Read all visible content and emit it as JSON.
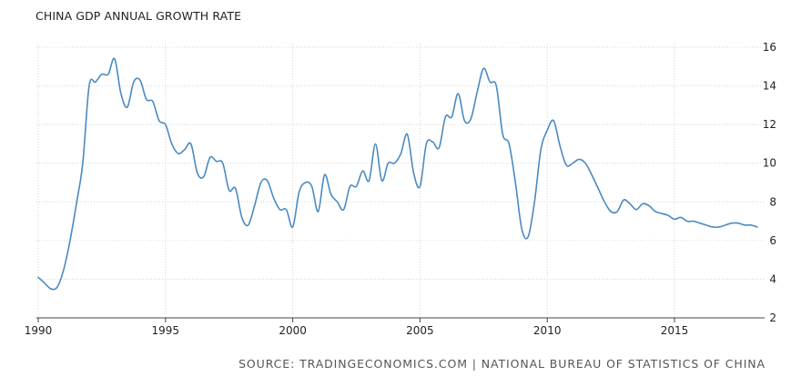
{
  "chart_data": {
    "type": "line",
    "title": "CHINA GDP ANNUAL GROWTH RATE",
    "source": "SOURCE: TRADINGECONOMICS.COM | NATIONAL BUREAU OF STATISTICS OF CHINA",
    "xlabel": "",
    "ylabel": "",
    "xlim": [
      1990,
      2018.5
    ],
    "ylim": [
      2,
      16
    ],
    "x_ticks": [
      {
        "value": 1990,
        "label": "1990"
      },
      {
        "value": 1995,
        "label": "1995"
      },
      {
        "value": 2000,
        "label": "2000"
      },
      {
        "value": 2005,
        "label": "2005"
      },
      {
        "value": 2010,
        "label": "2010"
      },
      {
        "value": 2015,
        "label": "2015"
      }
    ],
    "y_ticks": [
      {
        "value": 2,
        "label": "2"
      },
      {
        "value": 4,
        "label": "4"
      },
      {
        "value": 6,
        "label": "6"
      },
      {
        "value": 8,
        "label": "8"
      },
      {
        "value": 10,
        "label": "10"
      },
      {
        "value": 12,
        "label": "12"
      },
      {
        "value": 14,
        "label": "14"
      },
      {
        "value": 16,
        "label": "16"
      }
    ],
    "grid": true,
    "line_color": "#4a8ac2",
    "series": [
      {
        "name": "China GDP Annual Growth Rate",
        "x": [
          1990.0,
          1990.25,
          1990.5,
          1990.75,
          1991.0,
          1991.25,
          1991.5,
          1991.75,
          1992.0,
          1992.25,
          1992.5,
          1992.75,
          1993.0,
          1993.25,
          1993.5,
          1993.75,
          1994.0,
          1994.25,
          1994.5,
          1994.75,
          1995.0,
          1995.25,
          1995.5,
          1995.75,
          1996.0,
          1996.25,
          1996.5,
          1996.75,
          1997.0,
          1997.25,
          1997.5,
          1997.75,
          1998.0,
          1998.25,
          1998.5,
          1998.75,
          1999.0,
          1999.25,
          1999.5,
          1999.75,
          2000.0,
          2000.25,
          2000.5,
          2000.75,
          2001.0,
          2001.25,
          2001.5,
          2001.75,
          2002.0,
          2002.25,
          2002.5,
          2002.75,
          2003.0,
          2003.25,
          2003.5,
          2003.75,
          2004.0,
          2004.25,
          2004.5,
          2004.75,
          2005.0,
          2005.25,
          2005.5,
          2005.75,
          2006.0,
          2006.25,
          2006.5,
          2006.75,
          2007.0,
          2007.25,
          2007.5,
          2007.75,
          2008.0,
          2008.25,
          2008.5,
          2008.75,
          2009.0,
          2009.25,
          2009.5,
          2009.75,
          2010.0,
          2010.25,
          2010.5,
          2010.75,
          2011.0,
          2011.25,
          2011.5,
          2011.75,
          2012.0,
          2012.25,
          2012.5,
          2012.75,
          2013.0,
          2013.25,
          2013.5,
          2013.75,
          2014.0,
          2014.25,
          2014.5,
          2014.75,
          2015.0,
          2015.25,
          2015.5,
          2015.75,
          2016.0,
          2016.25,
          2016.5,
          2016.75,
          2017.0,
          2017.25,
          2017.5,
          2017.75,
          2018.0,
          2018.25
        ],
        "values": [
          4.1,
          3.8,
          3.5,
          3.6,
          4.5,
          6.0,
          7.9,
          10.0,
          14.0,
          14.2,
          14.6,
          14.6,
          15.4,
          13.6,
          12.9,
          14.2,
          14.3,
          13.3,
          13.2,
          12.2,
          12.0,
          11.0,
          10.5,
          10.7,
          11.0,
          9.5,
          9.3,
          10.3,
          10.1,
          10.0,
          8.6,
          8.7,
          7.2,
          6.8,
          7.8,
          9.0,
          9.1,
          8.2,
          7.6,
          7.6,
          6.7,
          8.5,
          9.0,
          8.8,
          7.5,
          9.4,
          8.4,
          8.0,
          7.6,
          8.8,
          8.8,
          9.6,
          9.1,
          11.0,
          9.1,
          10.0,
          10.0,
          10.5,
          11.5,
          9.5,
          8.8,
          11.0,
          11.1,
          10.8,
          12.4,
          12.4,
          13.6,
          12.2,
          12.3,
          13.7,
          14.9,
          14.2,
          14.0,
          11.5,
          11.0,
          9.0,
          6.6,
          6.2,
          8.0,
          10.7,
          11.7,
          12.2,
          10.9,
          9.9,
          10.0,
          10.2,
          10.0,
          9.4,
          8.7,
          8.0,
          7.5,
          7.5,
          8.1,
          7.9,
          7.6,
          7.9,
          7.8,
          7.5,
          7.4,
          7.3,
          7.1,
          7.2,
          7.0,
          7.0,
          6.9,
          6.8,
          6.7,
          6.7,
          6.8,
          6.9,
          6.9,
          6.8,
          6.8,
          6.7
        ]
      }
    ]
  }
}
